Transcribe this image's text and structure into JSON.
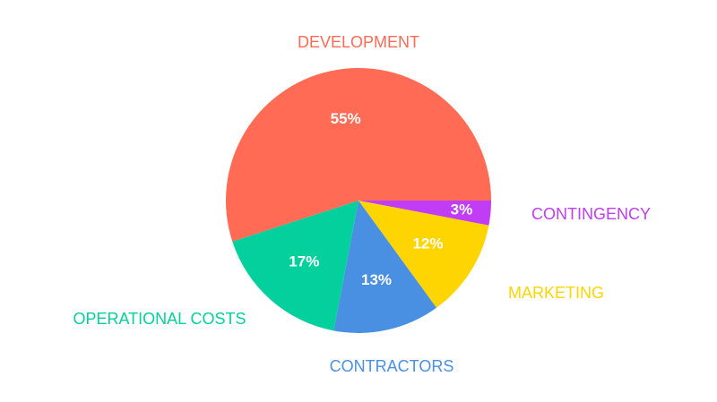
{
  "chart_data": {
    "type": "pie",
    "title": "",
    "start": "3 o'clock",
    "direction": "clockwise",
    "slices": [
      {
        "label": "CONTINGENCY",
        "value": 3,
        "value_label": "3%",
        "color": "#c13cf5"
      },
      {
        "label": "MARKETING",
        "value": 12,
        "value_label": "12%",
        "color": "#ffd500"
      },
      {
        "label": "CONTRACTORS",
        "value": 13,
        "value_label": "13%",
        "color": "#4a90e2"
      },
      {
        "label": "OPERATIONAL COSTS",
        "value": 17,
        "value_label": "17%",
        "color": "#04d09d"
      },
      {
        "label": "DEVELOPMENT",
        "value": 55,
        "value_label": "55%",
        "color": "#ff6b55"
      }
    ]
  }
}
